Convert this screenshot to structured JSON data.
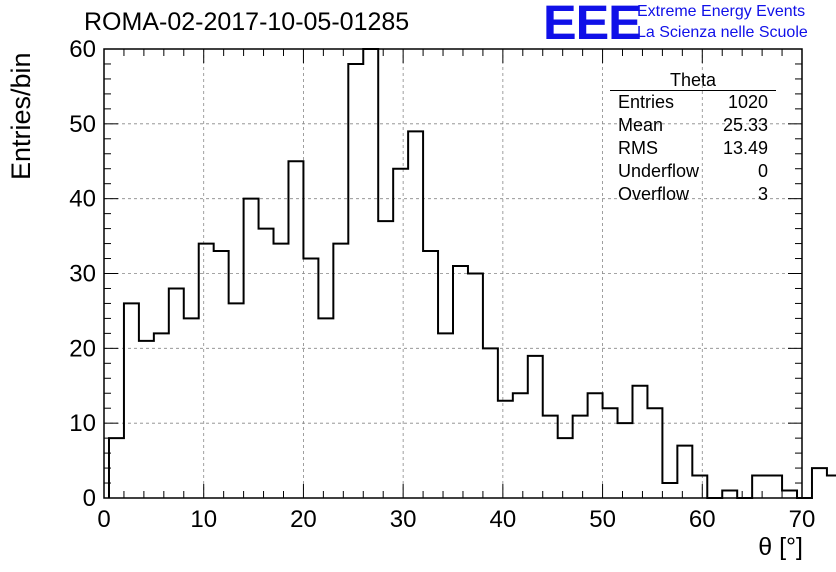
{
  "header": {
    "run_title": "ROMA-02-2017-10-05-01285",
    "logo_text": "EEE",
    "brand_line1": "Extreme Energy Events",
    "brand_line2": "La Scienza nelle Scuole"
  },
  "stats_box": {
    "title": "Theta",
    "rows": [
      {
        "label": "Entries",
        "value": "1020"
      },
      {
        "label": "Mean",
        "value": "25.33"
      },
      {
        "label": "RMS",
        "value": "13.49"
      },
      {
        "label": "Underflow",
        "value": "0"
      },
      {
        "label": "Overflow",
        "value": "3"
      }
    ]
  },
  "colors": {
    "brand": "#1010e8",
    "line": "#000000",
    "grid": "#888888"
  },
  "chart_data": {
    "type": "histogram",
    "xlabel": "θ [°]",
    "ylabel": "Entries/bin",
    "xlim": [
      0,
      70
    ],
    "ylim": [
      0,
      60
    ],
    "xticks": [
      0,
      10,
      20,
      30,
      40,
      50,
      60,
      70
    ],
    "yticks": [
      0,
      10,
      20,
      30,
      40,
      50,
      60
    ],
    "grid": true,
    "bin_width": 1.5,
    "bin_edges_start": 0.5,
    "values": [
      8,
      26,
      21,
      22,
      28,
      24,
      34,
      33,
      26,
      40,
      36,
      34,
      45,
      32,
      24,
      34,
      58,
      60,
      37,
      44,
      49,
      33,
      22,
      31,
      30,
      20,
      13,
      14,
      19,
      11,
      8,
      11,
      14,
      12,
      10,
      15,
      12,
      2,
      7,
      3,
      0,
      1,
      0,
      3,
      3,
      1,
      0,
      4,
      3
    ]
  }
}
